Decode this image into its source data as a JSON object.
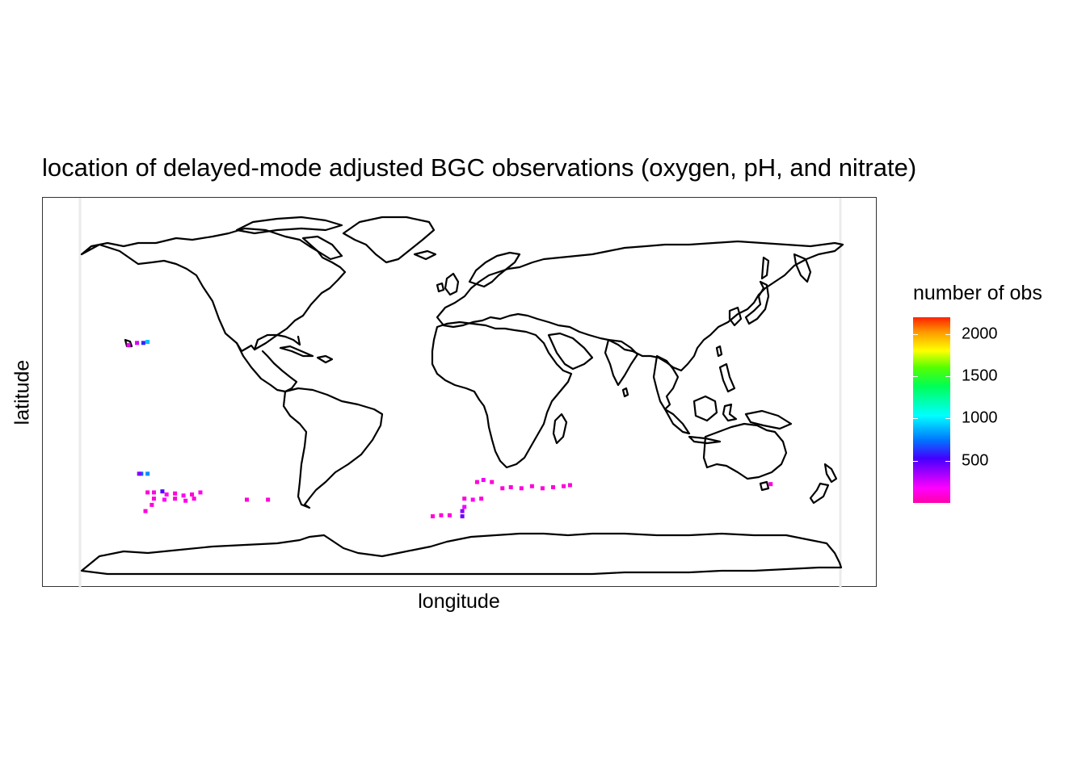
{
  "title": "location of delayed-mode adjusted BGC observations (oxygen, pH, and nitrate)",
  "x_axis_label": "longitude",
  "y_axis_label": "latitude",
  "legend": {
    "title": "number of obs",
    "ticks": [
      {
        "label": "2000",
        "value": 2000
      },
      {
        "label": "1500",
        "value": 1500
      },
      {
        "label": "1000",
        "value": 1000
      },
      {
        "label": "500",
        "value": 500
      }
    ],
    "range": [
      0,
      2200
    ],
    "colors": [
      "#ff00aa",
      "#ff00ff",
      "#4400ff",
      "#0077ff",
      "#00ffff",
      "#00ff55",
      "#55ff00",
      "#ffff00",
      "#ff9900",
      "#ff2200"
    ]
  },
  "map": {
    "projection": "equirectangular",
    "coastline_color": "#000000",
    "grid_line_color": "#ebebeb"
  },
  "chart_data": {
    "type": "heatmap",
    "xlim": [
      -180,
      180
    ],
    "ylim": [
      -90,
      90
    ],
    "cells": [
      {
        "lon": -157,
        "lat": 23,
        "n": 200
      },
      {
        "lon": -153,
        "lat": 24,
        "n": 250
      },
      {
        "lon": -150,
        "lat": 24,
        "n": 600
      },
      {
        "lon": -148,
        "lat": 24.5,
        "n": 900
      },
      {
        "lon": -151,
        "lat": -39,
        "n": 700
      },
      {
        "lon": -148,
        "lat": -39,
        "n": 800
      },
      {
        "lon": -152,
        "lat": -39,
        "n": 400
      },
      {
        "lon": -148,
        "lat": -48,
        "n": 100
      },
      {
        "lon": -145,
        "lat": -48,
        "n": 120
      },
      {
        "lon": -141,
        "lat": -47.5,
        "n": 500
      },
      {
        "lon": -139,
        "lat": -49,
        "n": 150
      },
      {
        "lon": -135,
        "lat": -48.5,
        "n": 100
      },
      {
        "lon": -131,
        "lat": -49.5,
        "n": 150
      },
      {
        "lon": -127,
        "lat": -49,
        "n": 100
      },
      {
        "lon": -123,
        "lat": -48,
        "n": 150
      },
      {
        "lon": -145,
        "lat": -51,
        "n": 100
      },
      {
        "lon": -140,
        "lat": -51.5,
        "n": 150
      },
      {
        "lon": -135,
        "lat": -51,
        "n": 100
      },
      {
        "lon": -130,
        "lat": -52,
        "n": 150
      },
      {
        "lon": -126,
        "lat": -51,
        "n": 100
      },
      {
        "lon": -146,
        "lat": -54,
        "n": 100
      },
      {
        "lon": -149,
        "lat": -57,
        "n": 100
      },
      {
        "lon": -101,
        "lat": -51.5,
        "n": 100
      },
      {
        "lon": -91,
        "lat": -51.5,
        "n": 100
      },
      {
        "lon": 8,
        "lat": -43,
        "n": 100
      },
      {
        "lon": 11,
        "lat": -42,
        "n": 200
      },
      {
        "lon": 15,
        "lat": -43,
        "n": 100
      },
      {
        "lon": 20,
        "lat": -46,
        "n": 100
      },
      {
        "lon": 24,
        "lat": -45.5,
        "n": 100
      },
      {
        "lon": 29,
        "lat": -46,
        "n": 100
      },
      {
        "lon": 34,
        "lat": -45,
        "n": 100
      },
      {
        "lon": 39,
        "lat": -46,
        "n": 100
      },
      {
        "lon": 44,
        "lat": -45.5,
        "n": 100
      },
      {
        "lon": 49,
        "lat": -45,
        "n": 100
      },
      {
        "lon": 52,
        "lat": -44.5,
        "n": 100
      },
      {
        "lon": 2,
        "lat": -51,
        "n": 100
      },
      {
        "lon": 6,
        "lat": -51.5,
        "n": 150
      },
      {
        "lon": 10,
        "lat": -51,
        "n": 100
      },
      {
        "lon": 2,
        "lat": -55,
        "n": 200
      },
      {
        "lon": 1,
        "lat": -57,
        "n": 400
      },
      {
        "lon": -5,
        "lat": -59,
        "n": 100
      },
      {
        "lon": -9,
        "lat": -59,
        "n": 100
      },
      {
        "lon": -13,
        "lat": -59.5,
        "n": 100
      },
      {
        "lon": 1,
        "lat": -59.5,
        "n": 450
      },
      {
        "lon": 147,
        "lat": -44,
        "n": 100
      }
    ]
  }
}
